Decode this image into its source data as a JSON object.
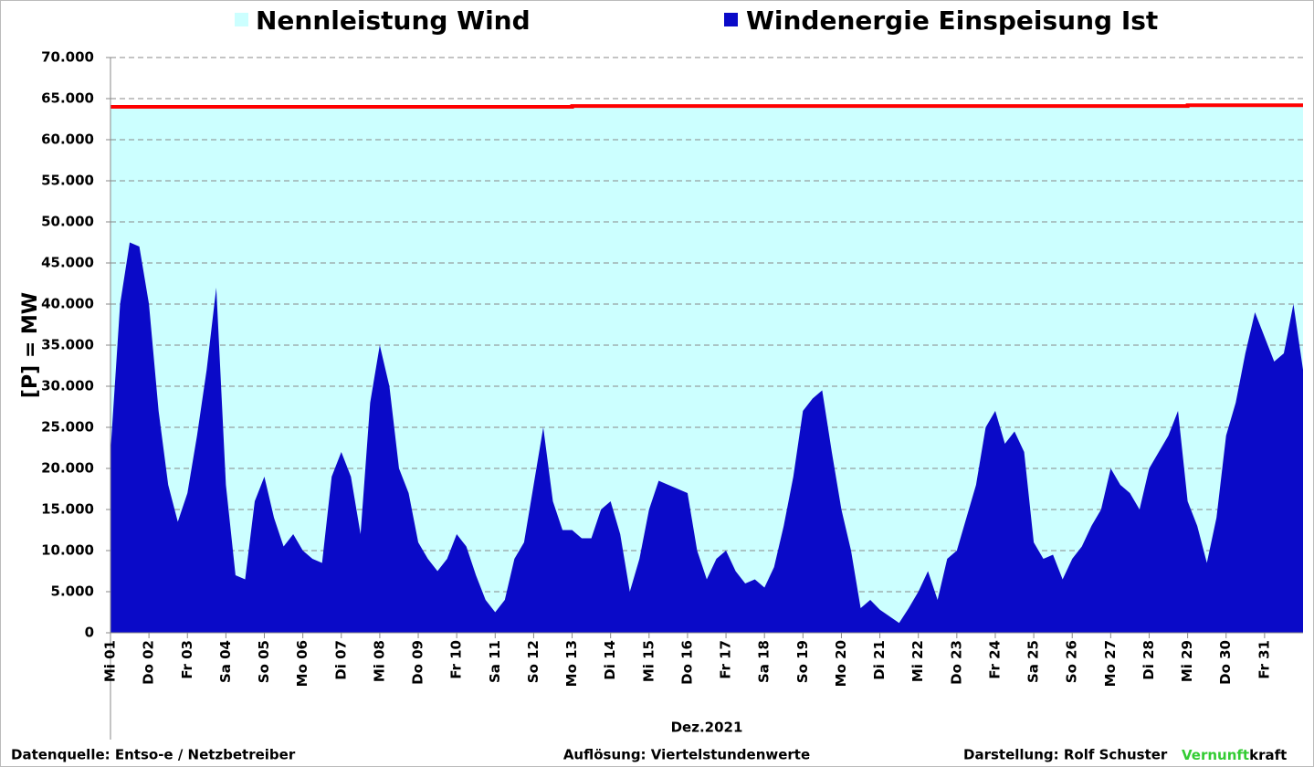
{
  "chart_data": {
    "type": "area",
    "legend": [
      "Nennleistung Wind",
      "Windenergie Einspeisung Ist"
    ],
    "y_label": "[P] = MW",
    "x_label": "Dez.2021",
    "source": "Datenquelle:  Entso-e  / Netzbetreiber",
    "resolution": "Auflösung: Viertelstundenwerte",
    "author": "Darstellung:  Rolf Schuster",
    "brand_green": "Vernunft",
    "brand_black": "kraft",
    "xlim": [
      0,
      31
    ],
    "ylim": [
      0,
      70000
    ],
    "yticks": [
      0,
      {
        "value": 5000,
        "label": "5.000"
      },
      {
        "value": 10000,
        "label": "10.000"
      },
      {
        "value": 15000,
        "label": "15.000"
      },
      {
        "value": 20000,
        "label": "20.000"
      },
      {
        "value": 25000,
        "label": "25.000"
      },
      {
        "value": 30000,
        "label": "30.000"
      },
      {
        "value": 35000,
        "label": "35.000"
      },
      {
        "value": 40000,
        "label": "40.000"
      },
      {
        "value": 45000,
        "label": "45.000"
      },
      {
        "value": 50000,
        "label": "50.000"
      },
      {
        "value": 55000,
        "label": "55.000"
      },
      {
        "value": 60000,
        "label": "60.000"
      },
      {
        "value": 65000,
        "label": "65.000"
      },
      {
        "value": 70000,
        "label": "70.000"
      }
    ],
    "xticks": [
      {
        "value": 0,
        "label": "Mi 01"
      },
      {
        "value": 1,
        "label": "Do 02"
      },
      {
        "value": 2,
        "label": "Fr 03"
      },
      {
        "value": 3,
        "label": "Sa 04"
      },
      {
        "value": 4,
        "label": "So 05"
      },
      {
        "value": 5,
        "label": "Mo 06"
      },
      {
        "value": 6,
        "label": "Di 07"
      },
      {
        "value": 7,
        "label": "Mi 08"
      },
      {
        "value": 8,
        "label": "Do 09"
      },
      {
        "value": 9,
        "label": "Fr 10"
      },
      {
        "value": 10,
        "label": "Sa 11"
      },
      {
        "value": 11,
        "label": "So 12"
      },
      {
        "value": 12,
        "label": "Mo 13"
      },
      {
        "value": 13,
        "label": "Di 14"
      },
      {
        "value": 14,
        "label": "Mi 15"
      },
      {
        "value": 15,
        "label": "Do 16"
      },
      {
        "value": 16,
        "label": "Fr 17"
      },
      {
        "value": 17,
        "label": "Sa 18"
      },
      {
        "value": 18,
        "label": "So 19"
      },
      {
        "value": 19,
        "label": "Mo 20"
      },
      {
        "value": 20,
        "label": "Di 21"
      },
      {
        "value": 21,
        "label": "Mi 22"
      },
      {
        "value": 22,
        "label": "Do 23"
      },
      {
        "value": 23,
        "label": "Fr 24"
      },
      {
        "value": 24,
        "label": "Sa 25"
      },
      {
        "value": 25,
        "label": "So 26"
      },
      {
        "value": 26,
        "label": "Mo 27"
      },
      {
        "value": 27,
        "label": "Di 28"
      },
      {
        "value": 28,
        "label": "Mi 29"
      },
      {
        "value": 29,
        "label": "Do 30"
      },
      {
        "value": 30,
        "label": "Fr 31"
      }
    ],
    "grid": true,
    "series": [
      {
        "name": "Nennleistung Wind",
        "color": "#ccffff",
        "edge_color": "#ff0000",
        "x": [
          0,
          12,
          12,
          28,
          28,
          31
        ],
        "values": [
          64000,
          64000,
          64100,
          64100,
          64200,
          64200
        ]
      },
      {
        "name": "Windenergie Einspeisung Ist",
        "color": "#0a0ac8",
        "x": [
          0,
          0.25,
          0.5,
          0.75,
          1,
          1.25,
          1.5,
          1.75,
          2,
          2.25,
          2.5,
          2.75,
          3,
          3.25,
          3.5,
          3.75,
          4,
          4.25,
          4.5,
          4.75,
          5,
          5.25,
          5.5,
          5.75,
          6,
          6.25,
          6.5,
          6.75,
          7,
          7.25,
          7.5,
          7.75,
          8,
          8.25,
          8.5,
          8.75,
          9,
          9.25,
          9.5,
          9.75,
          10,
          10.25,
          10.5,
          10.75,
          11,
          11.25,
          11.5,
          11.75,
          12,
          12.25,
          12.5,
          12.75,
          13,
          13.25,
          13.5,
          13.75,
          14,
          14.25,
          14.5,
          14.75,
          15,
          15.25,
          15.5,
          15.75,
          16,
          16.25,
          16.5,
          16.75,
          17,
          17.25,
          17.5,
          17.75,
          18,
          18.25,
          18.5,
          18.75,
          19,
          19.25,
          19.5,
          19.75,
          20,
          20.25,
          20.5,
          20.75,
          21,
          21.25,
          21.5,
          21.75,
          22,
          22.25,
          22.5,
          22.75,
          23,
          23.25,
          23.5,
          23.75,
          24,
          24.25,
          24.5,
          24.75,
          25,
          25.25,
          25.5,
          25.75,
          26,
          26.25,
          26.5,
          26.75,
          27,
          27.25,
          27.5,
          27.75,
          28,
          28.25,
          28.5,
          28.75,
          29,
          29.25,
          29.5,
          29.75,
          30,
          30.25,
          30.5,
          30.75,
          31
        ],
        "values": [
          22000,
          40000,
          47500,
          47000,
          40000,
          27000,
          18000,
          13500,
          17000,
          24000,
          32000,
          42000,
          18000,
          7000,
          6500,
          16000,
          19000,
          14000,
          10500,
          12000,
          10000,
          9000,
          8500,
          19000,
          22000,
          19000,
          12000,
          28000,
          35000,
          30000,
          20000,
          17000,
          11000,
          9000,
          7500,
          9000,
          12000,
          10500,
          7000,
          4000,
          2500,
          4000,
          9000,
          11000,
          18000,
          25000,
          16000,
          12500,
          12500,
          11500,
          11500,
          15000,
          16000,
          12000,
          5000,
          9000,
          15000,
          18500,
          18000,
          17500,
          17000,
          10000,
          6500,
          9000,
          10000,
          7500,
          6000,
          6500,
          5500,
          8000,
          13000,
          19000,
          27000,
          28500,
          29500,
          22000,
          15000,
          10000,
          3000,
          4000,
          2800,
          2000,
          1200,
          3000,
          5000,
          7500,
          4000,
          9000,
          10000,
          14000,
          18000,
          25000,
          27000,
          23000,
          24500,
          22000,
          11000,
          9000,
          9500,
          6500,
          9000,
          10500,
          13000,
          15000,
          20000,
          18000,
          17000,
          15000,
          20000,
          22000,
          24000,
          27000,
          16000,
          13000,
          8500,
          14000,
          24000,
          28000,
          34000,
          39000,
          36000,
          33000,
          34000,
          40000,
          32000
        ]
      }
    ]
  }
}
